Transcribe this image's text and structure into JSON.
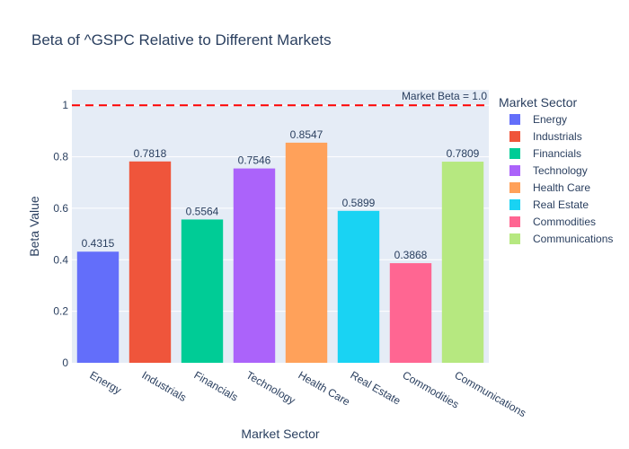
{
  "chart_data": {
    "type": "bar",
    "title": "Beta of ^GSPC Relative to Different Markets",
    "xlabel": "Market Sector",
    "ylabel": "Beta Value",
    "ylim": [
      0,
      1.06
    ],
    "yticks": [
      0,
      0.2,
      0.4,
      0.6,
      0.8,
      1
    ],
    "ytick_labels": [
      "0",
      "0.2",
      "0.4",
      "0.6",
      "0.8",
      "1"
    ],
    "grid": true,
    "legend_title": "Market Sector",
    "legend_position": "right",
    "categories": [
      "Energy",
      "Industrials",
      "Financials",
      "Technology",
      "Health Care",
      "Real Estate",
      "Commodities",
      "Communications"
    ],
    "values": [
      0.4315,
      0.7818,
      0.5564,
      0.7546,
      0.8547,
      0.5899,
      0.3868,
      0.7809
    ],
    "value_labels": [
      "0.4315",
      "0.7818",
      "0.5564",
      "0.7546",
      "0.8547",
      "0.5899",
      "0.3868",
      "0.7809"
    ],
    "colors": [
      "#636efa",
      "#EF553B",
      "#00cc96",
      "#ab63fa",
      "#FFA15A",
      "#19d3f3",
      "#FF6692",
      "#B6E880"
    ],
    "reference_line": {
      "value": 1.0,
      "label": "Market Beta = 1.0",
      "color": "#ff0000",
      "style": "dashed"
    },
    "plot_background": "#E5ECF6"
  }
}
